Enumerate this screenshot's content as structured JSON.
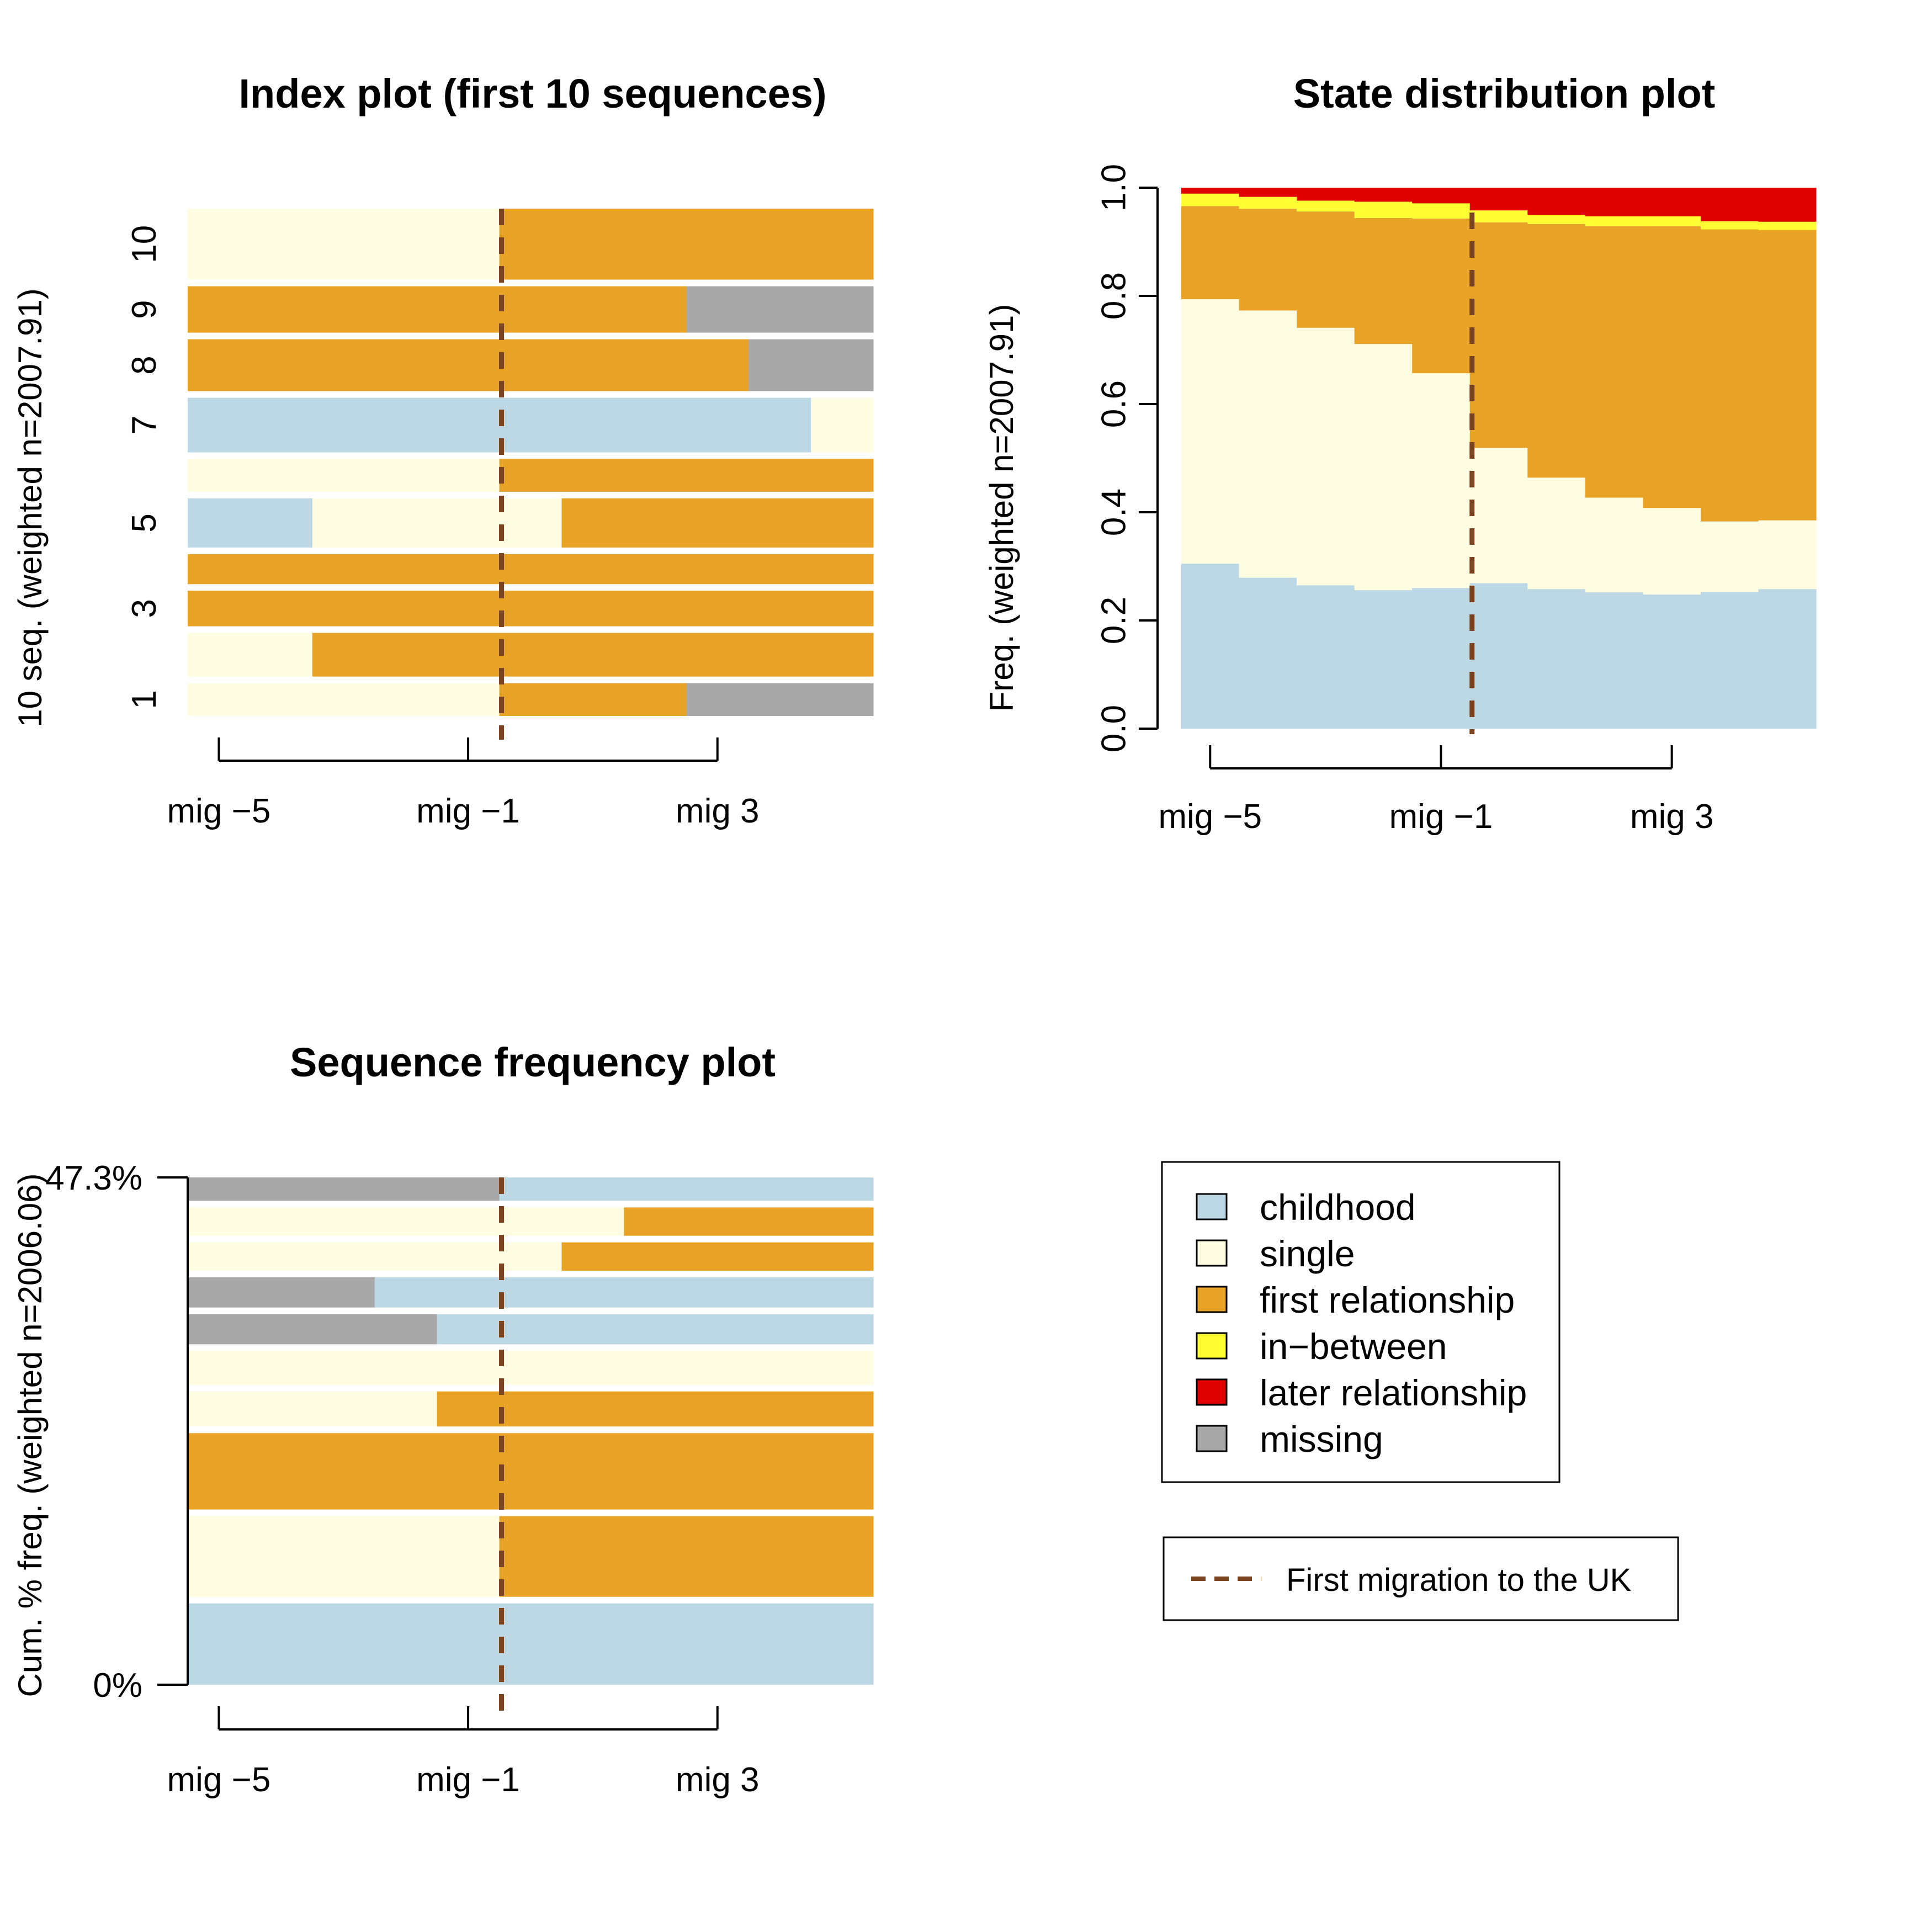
{
  "states": [
    {
      "key": "childhood",
      "label": "childhood",
      "color": "#BCD8E5"
    },
    {
      "key": "single",
      "label": "single",
      "color": "#FFFDE1"
    },
    {
      "key": "first",
      "label": "first relationship",
      "color": "#E8A225"
    },
    {
      "key": "between",
      "label": "in−between",
      "color": "#FFFF33"
    },
    {
      "key": "later",
      "label": "later relationship",
      "color": "#E00000"
    },
    {
      "key": "missing",
      "label": "missing",
      "color": "#A8A8A8"
    }
  ],
  "migration_line": {
    "label": "First migration to the UK",
    "color": "#7A4520"
  },
  "chart_data": [
    {
      "type": "sequence-index",
      "title": "Index plot (first 10 sequences)",
      "ylabel": "10 seq. (weighted n=2007.91)",
      "x_ticks": [
        "mig −5",
        "mig −1",
        "mig 3"
      ],
      "y_ticks": [
        "1",
        "3",
        "5",
        "7",
        "8",
        "9",
        "10"
      ],
      "periods": 11,
      "migration_after_period": 5,
      "sequences": [
        {
          "id": "1",
          "weight": 0.6,
          "spells": [
            [
              "single",
              5
            ],
            [
              "first",
              3
            ],
            [
              "missing",
              3
            ]
          ]
        },
        {
          "id": "2",
          "weight": 0.8,
          "spells": [
            [
              "single",
              2
            ],
            [
              "first",
              9
            ]
          ]
        },
        {
          "id": "3",
          "weight": 0.65,
          "spells": [
            [
              "first",
              11
            ]
          ]
        },
        {
          "id": "4",
          "weight": 0.55,
          "spells": [
            [
              "first",
              11
            ]
          ]
        },
        {
          "id": "5",
          "weight": 0.9,
          "spells": [
            [
              "childhood",
              2
            ],
            [
              "single",
              4
            ],
            [
              "first",
              5
            ]
          ]
        },
        {
          "id": "6",
          "weight": 0.6,
          "spells": [
            [
              "single",
              5
            ],
            [
              "first",
              6
            ]
          ]
        },
        {
          "id": "7",
          "weight": 1.0,
          "spells": [
            [
              "childhood",
              10
            ],
            [
              "single",
              1
            ]
          ]
        },
        {
          "id": "8",
          "weight": 0.95,
          "spells": [
            [
              "first",
              9
            ],
            [
              "missing",
              2
            ]
          ]
        },
        {
          "id": "9",
          "weight": 0.85,
          "spells": [
            [
              "first",
              8
            ],
            [
              "missing",
              3
            ]
          ]
        },
        {
          "id": "10",
          "weight": 1.3,
          "spells": [
            [
              "single",
              5
            ],
            [
              "first",
              6
            ]
          ]
        }
      ]
    },
    {
      "type": "area",
      "subtype": "stacked-state-distribution",
      "title": "State distribution plot",
      "ylabel": "Freq. (weighted n=2007.91)",
      "x_ticks": [
        "mig −5",
        "mig −1",
        "mig 3"
      ],
      "y_ticks": [
        "0.0",
        "0.2",
        "0.4",
        "0.6",
        "0.8",
        "1.0"
      ],
      "ylim": [
        0,
        1
      ],
      "periods": 11,
      "migration_after_period": 5,
      "series": [
        {
          "name": "childhood",
          "values": [
            0.305,
            0.279,
            0.265,
            0.256,
            0.26,
            0.269,
            0.258,
            0.252,
            0.248,
            0.253,
            0.258
          ]
        },
        {
          "name": "single",
          "values": [
            0.489,
            0.494,
            0.476,
            0.455,
            0.397,
            0.25,
            0.206,
            0.175,
            0.16,
            0.13,
            0.127
          ]
        },
        {
          "name": "first relationship",
          "values": [
            0.172,
            0.188,
            0.215,
            0.233,
            0.286,
            0.417,
            0.469,
            0.502,
            0.521,
            0.54,
            0.537
          ]
        },
        {
          "name": "in−between",
          "values": [
            0.023,
            0.022,
            0.02,
            0.03,
            0.028,
            0.022,
            0.017,
            0.018,
            0.018,
            0.015,
            0.015
          ]
        },
        {
          "name": "later relationship",
          "values": [
            0.011,
            0.017,
            0.024,
            0.026,
            0.029,
            0.042,
            0.05,
            0.053,
            0.053,
            0.062,
            0.063
          ]
        },
        {
          "name": "missing",
          "values": [
            0,
            0,
            0,
            0,
            0,
            0,
            0,
            0,
            0,
            0,
            0
          ]
        }
      ]
    },
    {
      "type": "sequence-frequency",
      "title": "Sequence frequency plot",
      "ylabel": "Cum. % freq. (weighted n=2006.06)",
      "y_ticks": [
        "0%",
        "47.3%"
      ],
      "cumulative_percent_range": [
        0,
        47.3
      ],
      "x_ticks": [
        "mig −5",
        "mig −1",
        "mig 3"
      ],
      "periods": 11,
      "migration_after_period": 5,
      "sequences": [
        {
          "rank": 1,
          "weight": 6.6,
          "spells": [
            [
              "childhood",
              11
            ]
          ]
        },
        {
          "rank": 2,
          "weight": 6.55,
          "spells": [
            [
              "single",
              5
            ],
            [
              "first",
              6
            ]
          ]
        },
        {
          "rank": 3,
          "weight": 6.2,
          "spells": [
            [
              "first",
              11
            ]
          ]
        },
        {
          "rank": 4,
          "weight": 2.85,
          "spells": [
            [
              "single",
              4
            ],
            [
              "first",
              7
            ]
          ]
        },
        {
          "rank": 5,
          "weight": 2.75,
          "spells": [
            [
              "single",
              11
            ]
          ]
        },
        {
          "rank": 6,
          "weight": 2.45,
          "spells": [
            [
              "missing",
              4
            ],
            [
              "childhood",
              7
            ]
          ]
        },
        {
          "rank": 7,
          "weight": 2.45,
          "spells": [
            [
              "missing",
              3
            ],
            [
              "childhood",
              8
            ]
          ]
        },
        {
          "rank": 8,
          "weight": 2.3,
          "spells": [
            [
              "single",
              6
            ],
            [
              "first",
              5
            ]
          ]
        },
        {
          "rank": 9,
          "weight": 2.3,
          "spells": [
            [
              "single",
              7
            ],
            [
              "first",
              4
            ]
          ]
        },
        {
          "rank": 10,
          "weight": 1.9,
          "spells": [
            [
              "missing",
              5
            ],
            [
              "childhood",
              6
            ]
          ]
        }
      ]
    }
  ]
}
